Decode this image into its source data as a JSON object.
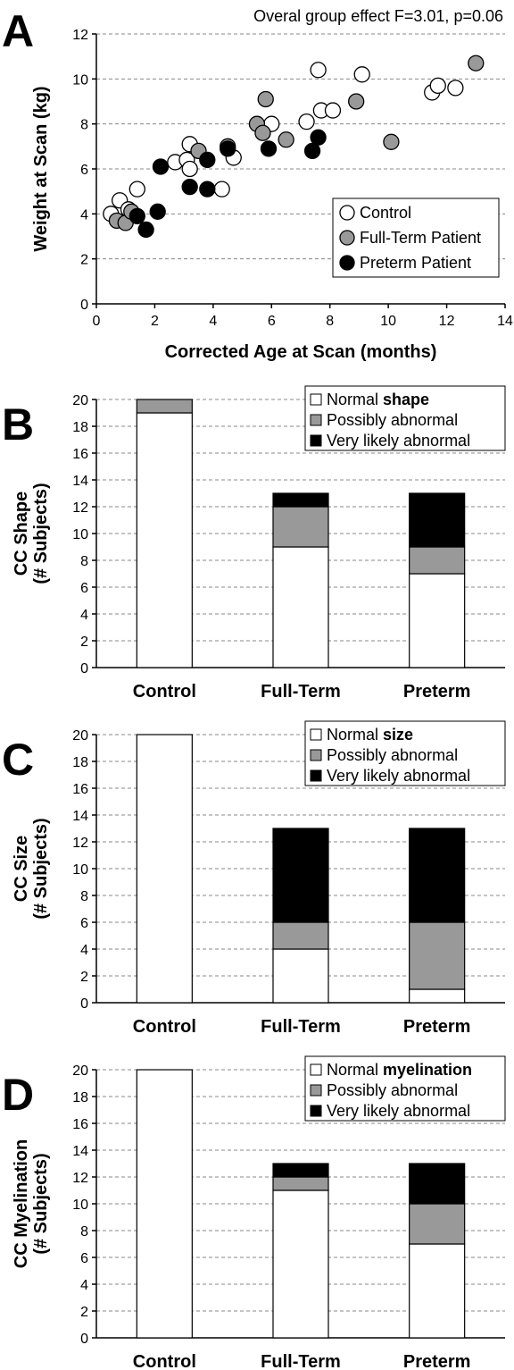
{
  "chart_data": [
    {
      "panel": "A",
      "type": "scatter",
      "annotation": "Overal group effect F=3.01, p=0.06",
      "xlabel": "Corrected Age at Scan (months)",
      "ylabel": "Weight at Scan (kg)",
      "xlim": [
        0,
        14
      ],
      "ylim": [
        0,
        12
      ],
      "xticks": [
        0,
        2,
        4,
        6,
        8,
        10,
        12,
        14
      ],
      "yticks": [
        0,
        2,
        4,
        6,
        8,
        10,
        12
      ],
      "grid": "horizontal dashed",
      "legend_position": "bottom-right",
      "series": [
        {
          "name": "Control",
          "color": "#ffffff",
          "points": [
            [
              0.5,
              4.0
            ],
            [
              0.8,
              4.6
            ],
            [
              1.1,
              4.2
            ],
            [
              1.4,
              5.1
            ],
            [
              2.7,
              6.3
            ],
            [
              3.1,
              6.4
            ],
            [
              3.2,
              7.1
            ],
            [
              3.2,
              6.0
            ],
            [
              4.3,
              5.1
            ],
            [
              4.7,
              6.5
            ],
            [
              6.0,
              8.0
            ],
            [
              7.2,
              8.1
            ],
            [
              7.6,
              10.4
            ],
            [
              7.7,
              8.6
            ],
            [
              8.1,
              8.6
            ],
            [
              9.1,
              10.2
            ],
            [
              11.5,
              9.4
            ],
            [
              11.7,
              9.7
            ],
            [
              12.3,
              9.6
            ]
          ]
        },
        {
          "name": "Full-Term Patient",
          "color": "#999999",
          "points": [
            [
              0.7,
              3.7
            ],
            [
              1.0,
              3.6
            ],
            [
              1.2,
              4.1
            ],
            [
              3.5,
              6.8
            ],
            [
              4.5,
              7.0
            ],
            [
              5.5,
              8.0
            ],
            [
              5.7,
              7.6
            ],
            [
              5.8,
              9.1
            ],
            [
              6.5,
              7.3
            ],
            [
              8.9,
              9.0
            ],
            [
              10.1,
              7.2
            ],
            [
              13.0,
              10.7
            ]
          ]
        },
        {
          "name": "Preterm Patient",
          "color": "#000000",
          "points": [
            [
              1.4,
              3.9
            ],
            [
              1.7,
              3.3
            ],
            [
              2.1,
              4.1
            ],
            [
              2.2,
              6.1
            ],
            [
              3.2,
              5.2
            ],
            [
              3.8,
              6.4
            ],
            [
              3.8,
              5.1
            ],
            [
              4.5,
              6.9
            ],
            [
              5.9,
              6.9
            ],
            [
              7.4,
              6.8
            ],
            [
              7.6,
              7.4
            ]
          ]
        }
      ]
    },
    {
      "panel": "B",
      "type": "bar",
      "stacked": true,
      "ylabel": [
        "CC Shape",
        "(# Subjects)"
      ],
      "ylim": [
        0,
        20
      ],
      "yticks": [
        0,
        2,
        4,
        6,
        8,
        10,
        12,
        14,
        16,
        18,
        20
      ],
      "categories": [
        "Control",
        "Full-Term",
        "Preterm"
      ],
      "legend_position": "top-right",
      "legend_labels": [
        {
          "prefix": "Normal ",
          "bold": "shape"
        },
        {
          "prefix": "Possibly abnormal",
          "bold": ""
        },
        {
          "prefix": "Very likely abnormal",
          "bold": ""
        }
      ],
      "series": [
        {
          "color": "#ffffff",
          "values": [
            19,
            9,
            7
          ]
        },
        {
          "color": "#999999",
          "values": [
            1,
            3,
            2
          ]
        },
        {
          "color": "#000000",
          "values": [
            0,
            1,
            4
          ]
        }
      ]
    },
    {
      "panel": "C",
      "type": "bar",
      "stacked": true,
      "ylabel": [
        "CC Size",
        "(# Subjects)"
      ],
      "ylim": [
        0,
        20
      ],
      "yticks": [
        0,
        2,
        4,
        6,
        8,
        10,
        12,
        14,
        16,
        18,
        20
      ],
      "categories": [
        "Control",
        "Full-Term",
        "Preterm"
      ],
      "legend_position": "top-right",
      "legend_labels": [
        {
          "prefix": "Normal ",
          "bold": "size"
        },
        {
          "prefix": "Possibly abnormal",
          "bold": ""
        },
        {
          "prefix": "Very likely abnormal",
          "bold": ""
        }
      ],
      "series": [
        {
          "color": "#ffffff",
          "values": [
            20,
            4,
            1
          ]
        },
        {
          "color": "#999999",
          "values": [
            0,
            2,
            5
          ]
        },
        {
          "color": "#000000",
          "values": [
            0,
            7,
            7
          ]
        }
      ]
    },
    {
      "panel": "D",
      "type": "bar",
      "stacked": true,
      "ylabel": [
        "CC Myelination",
        "(# Subjects)"
      ],
      "ylim": [
        0,
        20
      ],
      "yticks": [
        0,
        2,
        4,
        6,
        8,
        10,
        12,
        14,
        16,
        18,
        20
      ],
      "categories": [
        "Control",
        "Full-Term",
        "Preterm"
      ],
      "legend_position": "top-right",
      "legend_labels": [
        {
          "prefix": "Normal ",
          "bold": "myelination"
        },
        {
          "prefix": "Possibly abnormal",
          "bold": ""
        },
        {
          "prefix": "Very likely abnormal",
          "bold": ""
        }
      ],
      "series": [
        {
          "color": "#ffffff",
          "values": [
            20,
            11,
            7
          ]
        },
        {
          "color": "#999999",
          "values": [
            0,
            1,
            3
          ]
        },
        {
          "color": "#000000",
          "values": [
            0,
            1,
            3
          ]
        }
      ]
    }
  ]
}
